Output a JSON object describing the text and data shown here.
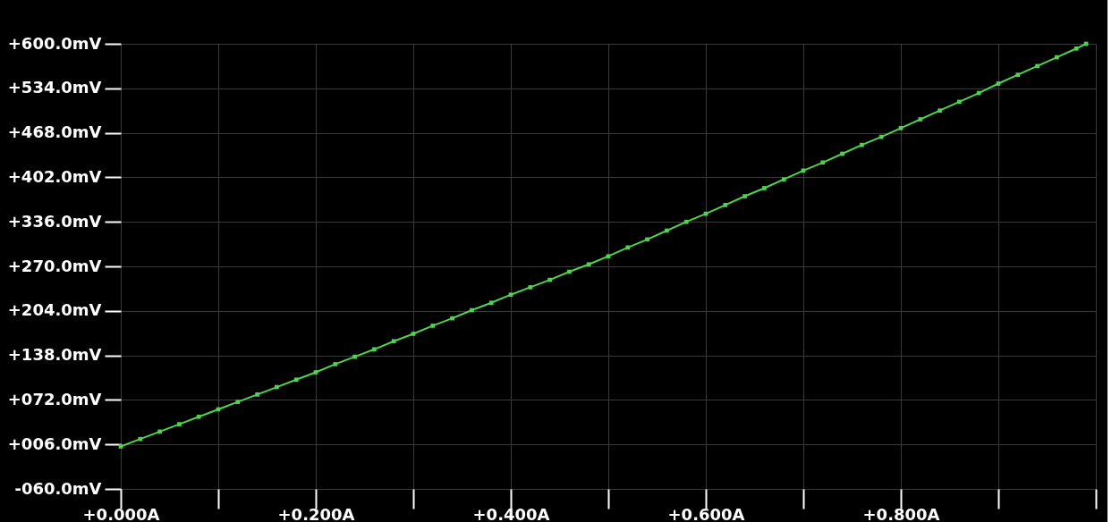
{
  "chart_data": {
    "type": "line",
    "marker": "square",
    "grid": true,
    "line_style": "solid",
    "x": [
      0,
      0.02,
      0.04,
      0.06,
      0.08,
      0.1,
      0.12,
      0.14,
      0.16,
      0.18,
      0.2,
      0.22,
      0.24,
      0.26,
      0.28,
      0.3,
      0.32,
      0.34,
      0.36,
      0.38,
      0.4,
      0.42,
      0.44,
      0.46,
      0.48,
      0.5,
      0.52,
      0.54,
      0.56,
      0.58,
      0.6,
      0.62,
      0.64,
      0.66,
      0.68,
      0.7,
      0.72,
      0.74,
      0.76,
      0.78,
      0.8,
      0.82,
      0.84,
      0.86,
      0.88,
      0.9,
      0.92,
      0.94,
      0.96,
      0.98,
      0.99
    ],
    "series": [
      {
        "color": "#4fd24f",
        "values": [
          3,
          14,
          25,
          36,
          47,
          58,
          69,
          80,
          91,
          102,
          113,
          125,
          136,
          147,
          159,
          170,
          182,
          193,
          205,
          216,
          228,
          239,
          250,
          262,
          273,
          285,
          298,
          310,
          323,
          336,
          348,
          361,
          374,
          386,
          399,
          412,
          424,
          437,
          450,
          462,
          475,
          488,
          501,
          514,
          527,
          541,
          554,
          567,
          580,
          593,
          600
        ]
      }
    ],
    "xlim": [
      0,
      1.0
    ],
    "xticks": [
      {
        "value": 0,
        "label": "+0.000A"
      },
      {
        "value": 0.1,
        "label": null
      },
      {
        "value": 0.2,
        "label": "+0.200A"
      },
      {
        "value": 0.3,
        "label": null
      },
      {
        "value": 0.4,
        "label": "+0.400A"
      },
      {
        "value": 0.5,
        "label": null
      },
      {
        "value": 0.6,
        "label": "+0.600A"
      },
      {
        "value": 0.7,
        "label": null
      },
      {
        "value": 0.8,
        "label": "+0.800A"
      },
      {
        "value": 0.9,
        "label": null
      },
      {
        "value": 1.0,
        "label": null
      }
    ],
    "ylim": [
      -60,
      600
    ],
    "yticks": [
      {
        "value": -60,
        "label": "-060.0mV"
      },
      {
        "value": 6,
        "label": "+006.0mV"
      },
      {
        "value": 72,
        "label": "+072.0mV"
      },
      {
        "value": 138,
        "label": "+138.0mV"
      },
      {
        "value": 204,
        "label": "+204.0mV"
      },
      {
        "value": 270,
        "label": "+270.0mV"
      },
      {
        "value": 336,
        "label": "+336.0mV"
      },
      {
        "value": 402,
        "label": "+402.0mV"
      },
      {
        "value": 468,
        "label": "+468.0mV"
      },
      {
        "value": 534,
        "label": "+534.0mV"
      },
      {
        "value": 600,
        "label": "+600.0mV"
      }
    ]
  }
}
